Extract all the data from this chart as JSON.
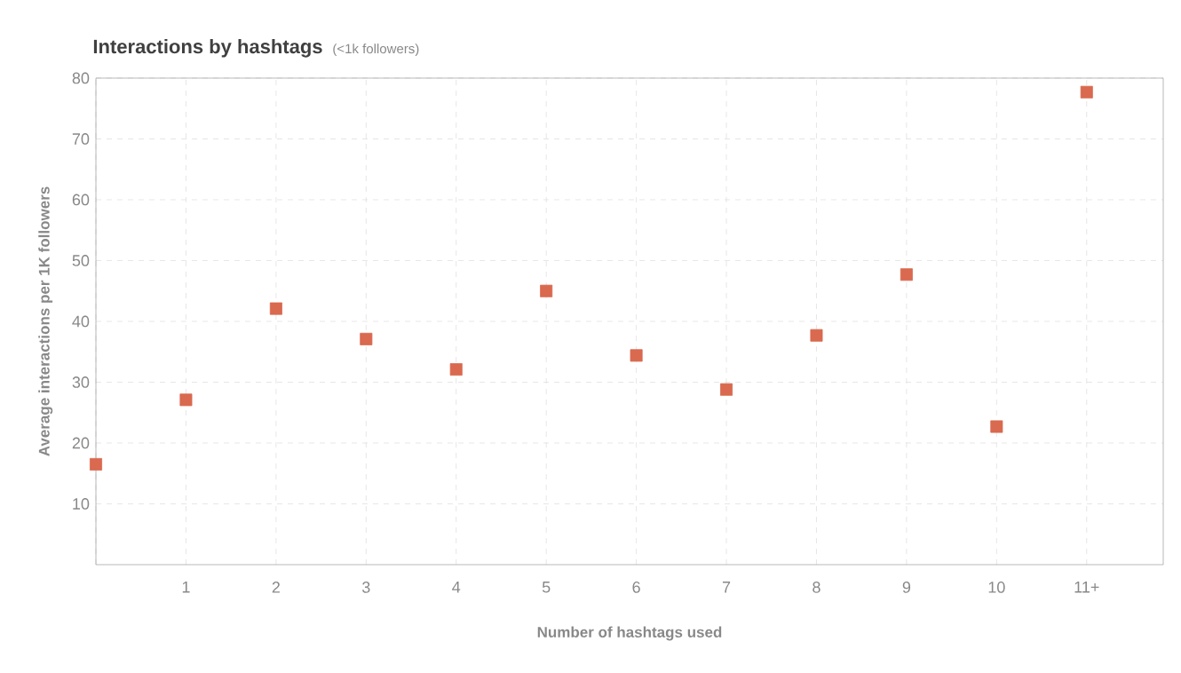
{
  "chart_data": {
    "type": "scatter",
    "title": "Interactions by hashtags",
    "subtitle": "(<1k followers)",
    "xlabel": "Number of hashtags used",
    "ylabel": "Average interactions per 1K followers",
    "categories": [
      null,
      "1",
      "2",
      "3",
      "4",
      "5",
      "6",
      "7",
      "8",
      "9",
      "10",
      "11+"
    ],
    "series": [
      {
        "color": "#d9694f",
        "values": [
          16.5,
          27.1,
          42.1,
          37.1,
          32.1,
          45,
          34.4,
          28.8,
          37.7,
          47.7,
          22.7,
          77.7
        ]
      }
    ],
    "ylim": [
      0,
      80
    ],
    "yticks": [
      10,
      20,
      30,
      40,
      50,
      60,
      70,
      80
    ],
    "grid": true,
    "marker": "square"
  }
}
